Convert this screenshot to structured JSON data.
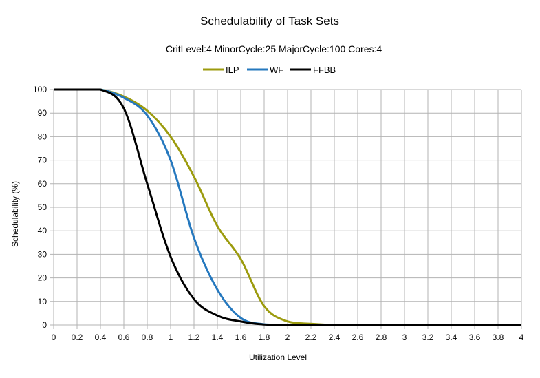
{
  "chart_data": {
    "type": "line",
    "title": "Schedulability of Task Sets",
    "subtitle": "CritLevel:4 MinorCycle:25 MajorCycle:100 Cores:4",
    "xlabel": "Utilization Level",
    "ylabel": "Schedulability (%)",
    "xlim": [
      0,
      4
    ],
    "ylim": [
      0,
      100
    ],
    "x_ticks": [
      "0",
      "0.2",
      "0.4",
      "0.6",
      "0.8",
      "1",
      "1.2",
      "1.4",
      "1.6",
      "1.8",
      "2",
      "2.2",
      "2.4",
      "2.6",
      "2.8",
      "3",
      "3.2",
      "3.4",
      "3.6",
      "3.8",
      "4"
    ],
    "y_ticks": [
      "0",
      "10",
      "20",
      "30",
      "40",
      "50",
      "60",
      "70",
      "80",
      "90",
      "100"
    ],
    "grid": true,
    "legend_position": "top",
    "x": [
      0,
      0.2,
      0.4,
      0.6,
      0.8,
      1,
      1.2,
      1.4,
      1.6,
      1.8,
      2,
      2.2,
      2.4,
      2.6,
      2.8,
      3,
      3.2,
      3.4,
      3.6,
      3.8,
      4
    ],
    "series": [
      {
        "name": "ILP",
        "color": "#9c9b0e",
        "values": [
          100,
          100,
          100,
          97,
          91,
          80,
          63,
          42,
          28,
          8,
          1.5,
          0.5,
          0,
          0,
          0,
          0,
          0,
          0,
          0,
          0,
          0
        ]
      },
      {
        "name": "WF",
        "color": "#2578be",
        "values": [
          100,
          100,
          100,
          96.5,
          89,
          70,
          37,
          15,
          3,
          0.3,
          0,
          0,
          0,
          0,
          0,
          0,
          0,
          0,
          0,
          0,
          0
        ]
      },
      {
        "name": "FFBB",
        "color": "#000000",
        "values": [
          100,
          100,
          100,
          92,
          60,
          29,
          11,
          4,
          1.5,
          0.2,
          0,
          0,
          0,
          0,
          0,
          0,
          0,
          0,
          0,
          0,
          0
        ]
      }
    ]
  }
}
